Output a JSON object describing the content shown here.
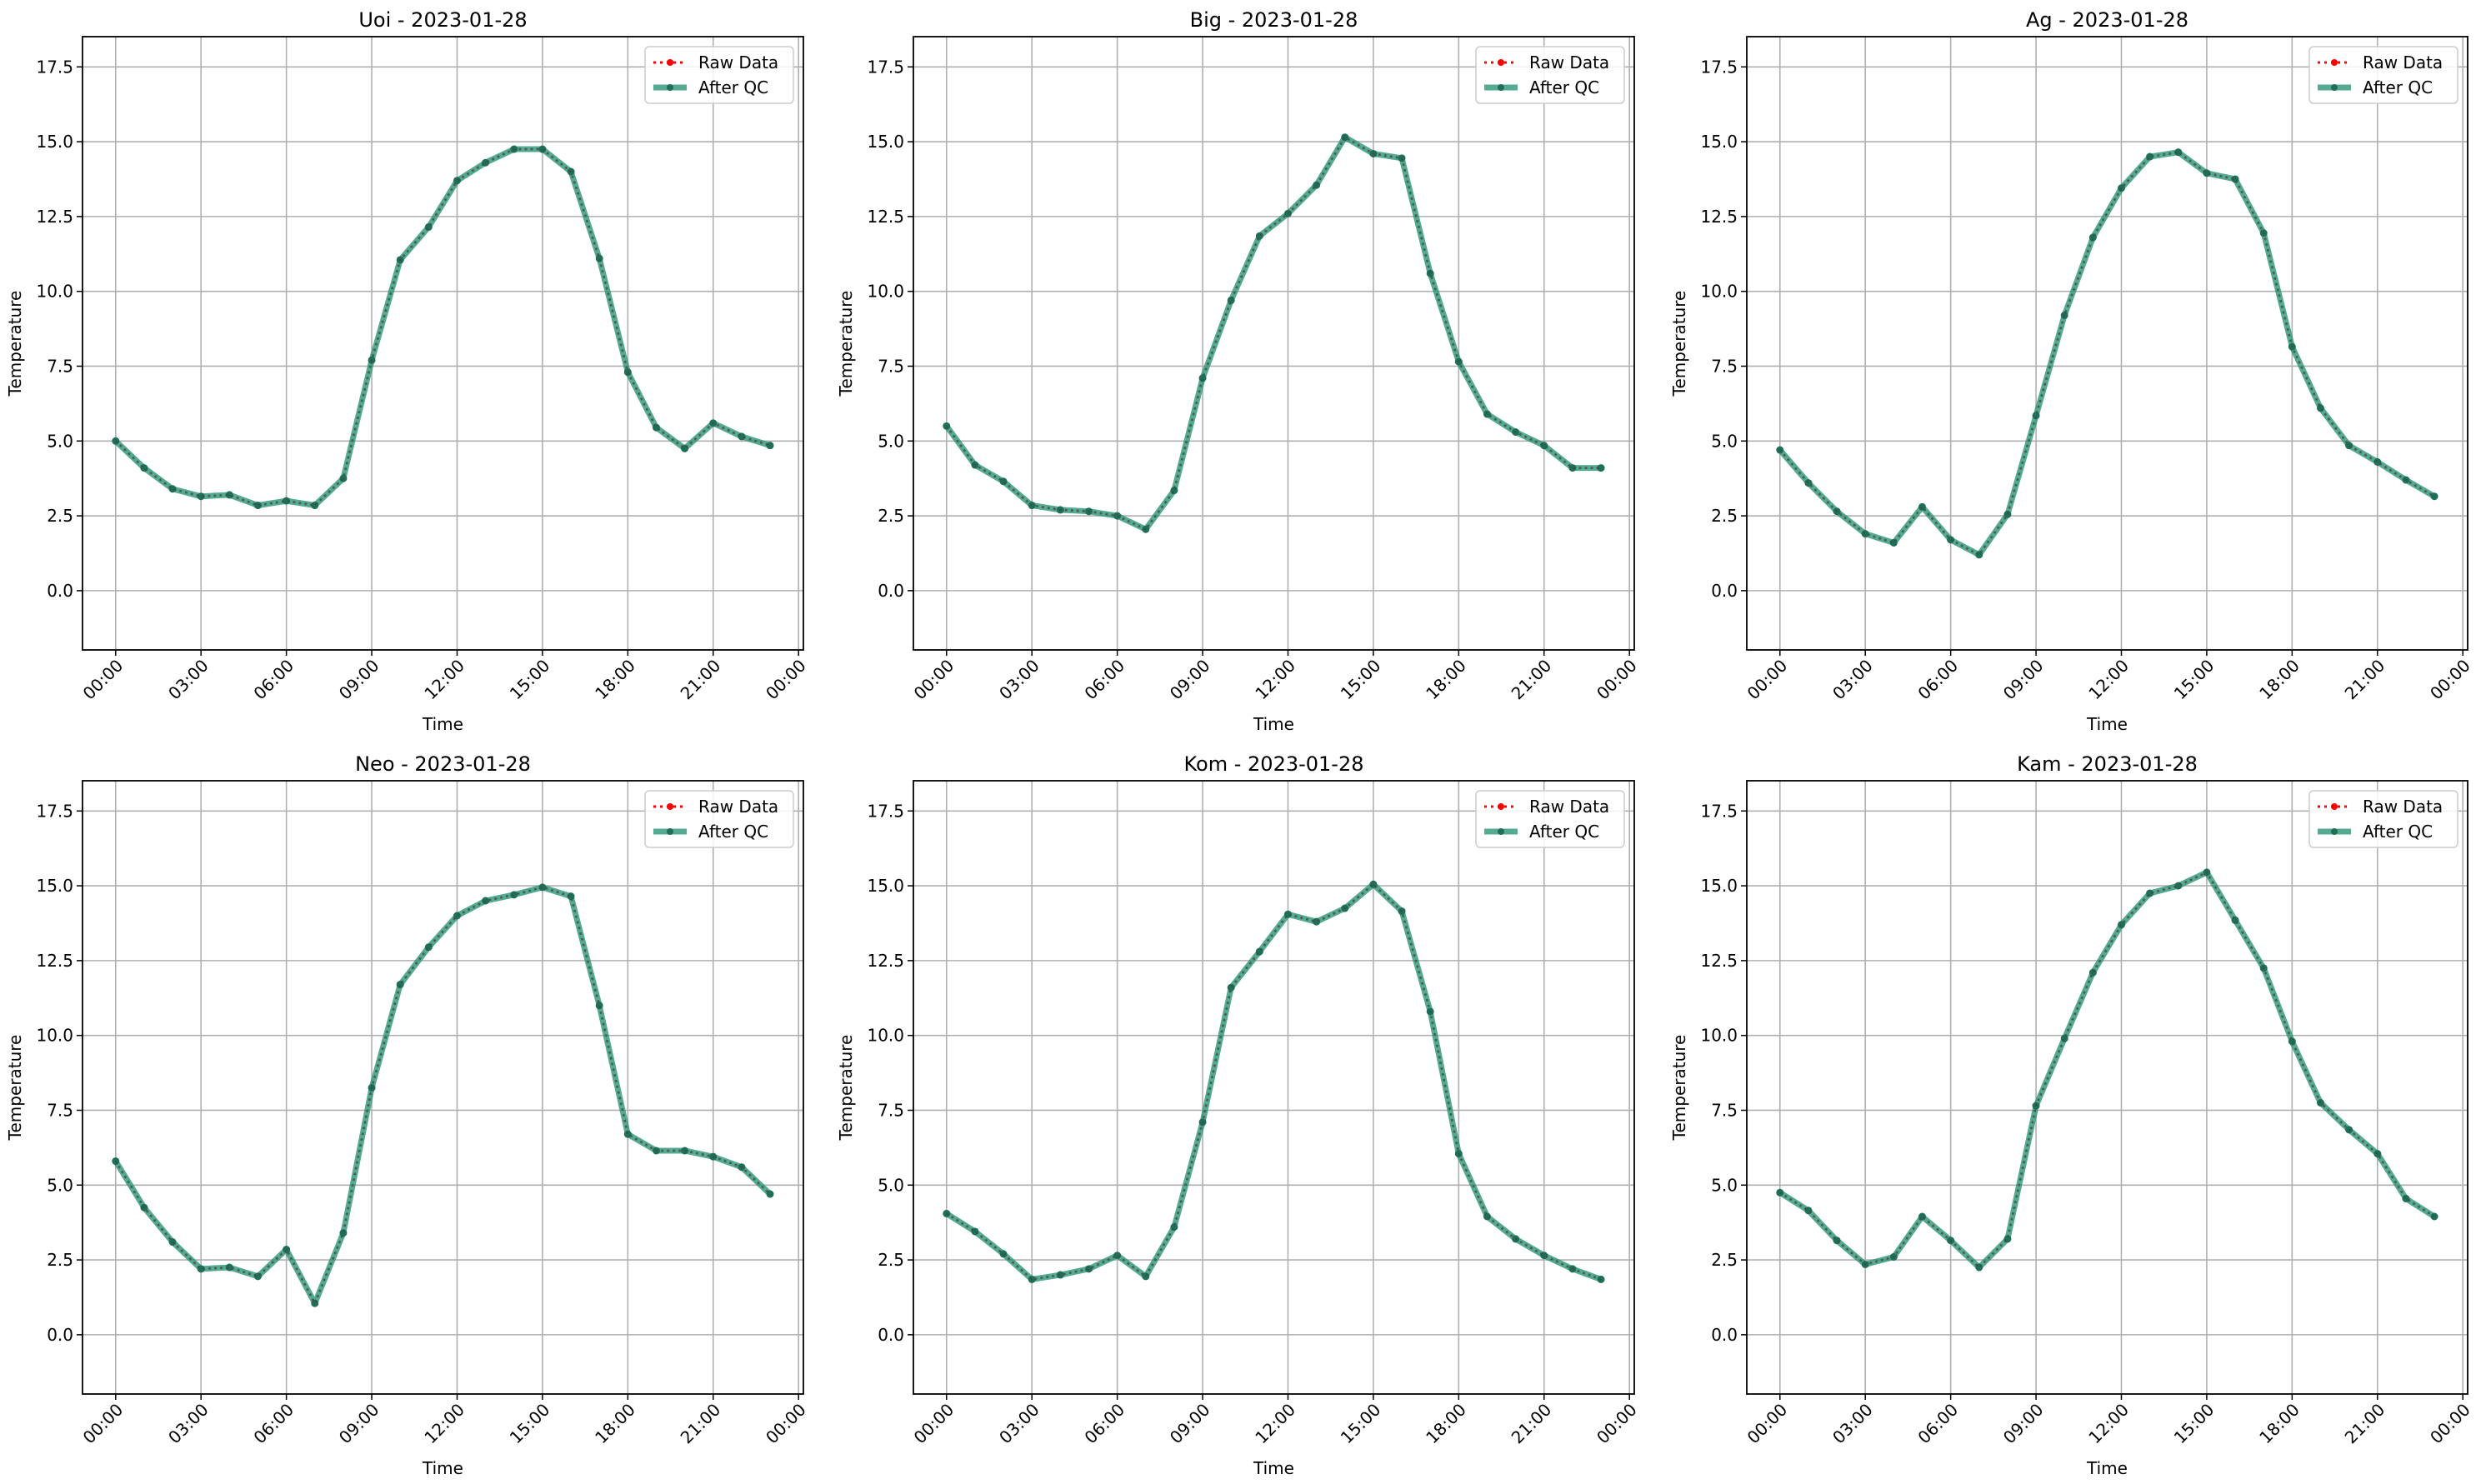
{
  "chart_data": [
    {
      "type": "line",
      "title": "Uoi - 2023-01-28",
      "xlabel": "Time",
      "ylabel": "Temperature",
      "x_hours": [
        0,
        1,
        2,
        3,
        4,
        5,
        6,
        7,
        8,
        9,
        10,
        11,
        12,
        13,
        14,
        15,
        16,
        17,
        18,
        19,
        20,
        21,
        22,
        23
      ],
      "series": [
        {
          "name": "Raw Data",
          "values": [
            5.0,
            4.1,
            3.4,
            3.15,
            3.2,
            2.85,
            3.0,
            2.85,
            3.75,
            7.7,
            11.05,
            12.15,
            13.7,
            14.3,
            14.75,
            14.75,
            14.0,
            11.1,
            7.3,
            5.45,
            4.75,
            5.6,
            5.15,
            4.85
          ]
        },
        {
          "name": "After QC",
          "values": [
            5.0,
            4.1,
            3.4,
            3.15,
            3.2,
            2.85,
            3.0,
            2.85,
            3.75,
            7.7,
            11.05,
            12.15,
            13.7,
            14.3,
            14.75,
            14.75,
            14.0,
            11.1,
            7.3,
            5.45,
            4.75,
            5.6,
            5.15,
            4.85
          ]
        }
      ]
    },
    {
      "type": "line",
      "title": "Big - 2023-01-28",
      "xlabel": "Time",
      "ylabel": "Temperature",
      "x_hours": [
        0,
        1,
        2,
        3,
        4,
        5,
        6,
        7,
        8,
        9,
        10,
        11,
        12,
        13,
        14,
        15,
        16,
        17,
        18,
        19,
        20,
        21,
        22,
        23
      ],
      "series": [
        {
          "name": "Raw Data",
          "values": [
            5.5,
            4.2,
            3.65,
            2.85,
            2.7,
            2.65,
            2.5,
            2.05,
            3.35,
            7.1,
            9.7,
            11.85,
            12.6,
            13.55,
            15.15,
            14.6,
            14.45,
            10.6,
            7.65,
            5.9,
            5.3,
            4.85,
            4.1,
            4.1
          ]
        },
        {
          "name": "After QC",
          "values": [
            5.5,
            4.2,
            3.65,
            2.85,
            2.7,
            2.65,
            2.5,
            2.05,
            3.35,
            7.1,
            9.7,
            11.85,
            12.6,
            13.55,
            15.15,
            14.6,
            14.45,
            10.6,
            7.65,
            5.9,
            5.3,
            4.85,
            4.1,
            4.1
          ]
        }
      ]
    },
    {
      "type": "line",
      "title": "Ag - 2023-01-28",
      "xlabel": "Time",
      "ylabel": "Temperature",
      "x_hours": [
        0,
        1,
        2,
        3,
        4,
        5,
        6,
        7,
        8,
        9,
        10,
        11,
        12,
        13,
        14,
        15,
        16,
        17,
        18,
        19,
        20,
        21,
        22,
        23
      ],
      "series": [
        {
          "name": "Raw Data",
          "values": [
            4.7,
            3.6,
            2.65,
            1.9,
            1.6,
            2.8,
            1.7,
            1.2,
            2.55,
            5.85,
            9.2,
            11.8,
            13.45,
            14.5,
            14.65,
            13.95,
            13.75,
            11.95,
            8.15,
            6.1,
            4.85,
            4.3,
            3.7,
            3.15
          ]
        },
        {
          "name": "After QC",
          "values": [
            4.7,
            3.6,
            2.65,
            1.9,
            1.6,
            2.8,
            1.7,
            1.2,
            2.55,
            5.85,
            9.2,
            11.8,
            13.45,
            14.5,
            14.65,
            13.95,
            13.75,
            11.95,
            8.15,
            6.1,
            4.85,
            4.3,
            3.7,
            3.15
          ]
        }
      ]
    },
    {
      "type": "line",
      "title": "Neo - 2023-01-28",
      "xlabel": "Time",
      "ylabel": "Temperature",
      "x_hours": [
        0,
        1,
        2,
        3,
        4,
        5,
        6,
        7,
        8,
        9,
        10,
        11,
        12,
        13,
        14,
        15,
        16,
        17,
        18,
        19,
        20,
        21,
        22,
        23
      ],
      "series": [
        {
          "name": "Raw Data",
          "values": [
            5.8,
            4.25,
            3.1,
            2.2,
            2.25,
            1.95,
            2.85,
            1.05,
            3.4,
            8.25,
            11.7,
            12.95,
            14.0,
            14.5,
            14.7,
            14.95,
            14.65,
            11.0,
            6.7,
            6.15,
            6.15,
            5.95,
            5.6,
            4.7
          ]
        },
        {
          "name": "After QC",
          "values": [
            5.8,
            4.25,
            3.1,
            2.2,
            2.25,
            1.95,
            2.85,
            1.05,
            3.4,
            8.25,
            11.7,
            12.95,
            14.0,
            14.5,
            14.7,
            14.95,
            14.65,
            11.0,
            6.7,
            6.15,
            6.15,
            5.95,
            5.6,
            4.7
          ]
        }
      ]
    },
    {
      "type": "line",
      "title": "Kom - 2023-01-28",
      "xlabel": "Time",
      "ylabel": "Temperature",
      "x_hours": [
        0,
        1,
        2,
        3,
        4,
        5,
        6,
        7,
        8,
        9,
        10,
        11,
        12,
        13,
        14,
        15,
        16,
        17,
        18,
        19,
        20,
        21,
        22,
        23
      ],
      "series": [
        {
          "name": "Raw Data",
          "values": [
            4.05,
            3.45,
            2.7,
            1.85,
            2.0,
            2.2,
            2.65,
            1.95,
            3.6,
            7.1,
            11.6,
            12.8,
            14.05,
            13.8,
            14.25,
            15.05,
            14.15,
            10.8,
            6.05,
            3.95,
            3.2,
            2.65,
            2.2,
            1.85
          ]
        },
        {
          "name": "After QC",
          "values": [
            4.05,
            3.45,
            2.7,
            1.85,
            2.0,
            2.2,
            2.65,
            1.95,
            3.6,
            7.1,
            11.6,
            12.8,
            14.05,
            13.8,
            14.25,
            15.05,
            14.15,
            10.8,
            6.05,
            3.95,
            3.2,
            2.65,
            2.2,
            1.85
          ]
        }
      ]
    },
    {
      "type": "line",
      "title": "Kam - 2023-01-28",
      "xlabel": "Time",
      "ylabel": "Temperature",
      "x_hours": [
        0,
        1,
        2,
        3,
        4,
        5,
        6,
        7,
        8,
        9,
        10,
        11,
        12,
        13,
        14,
        15,
        16,
        17,
        18,
        19,
        20,
        21,
        22,
        23
      ],
      "series": [
        {
          "name": "Raw Data",
          "values": [
            4.75,
            4.15,
            3.15,
            2.35,
            2.6,
            3.95,
            3.15,
            2.25,
            3.2,
            7.65,
            9.9,
            12.1,
            13.7,
            14.75,
            15.0,
            15.45,
            13.85,
            12.25,
            9.8,
            7.75,
            6.85,
            6.05,
            4.55,
            3.95
          ]
        },
        {
          "name": "After QC",
          "values": [
            4.75,
            4.15,
            3.15,
            2.35,
            2.6,
            3.95,
            3.15,
            2.25,
            3.2,
            7.65,
            9.9,
            12.1,
            13.7,
            14.75,
            15.0,
            15.45,
            13.85,
            12.25,
            9.8,
            7.75,
            6.85,
            6.05,
            4.55,
            3.95
          ]
        }
      ]
    }
  ],
  "axes": {
    "xticks": [
      "00:00",
      "03:00",
      "06:00",
      "09:00",
      "12:00",
      "15:00",
      "18:00",
      "21:00",
      "00:00"
    ],
    "xtick_hours": [
      0,
      3,
      6,
      9,
      12,
      15,
      18,
      21,
      24
    ],
    "yticks": [
      "0.0",
      "2.5",
      "5.0",
      "7.5",
      "10.0",
      "12.5",
      "15.0",
      "17.5"
    ],
    "ytick_values": [
      0,
      2.5,
      5,
      7.5,
      10,
      12.5,
      15,
      17.5
    ],
    "xlim": [
      -1.165,
      24.17
    ],
    "ylim": [
      -1.98,
      18.51
    ],
    "grid": true,
    "legend_placement": "top-right"
  },
  "colors": {
    "raw": "#ff0000",
    "qc": "#2a9676",
    "grid": "#b0b0b0"
  }
}
